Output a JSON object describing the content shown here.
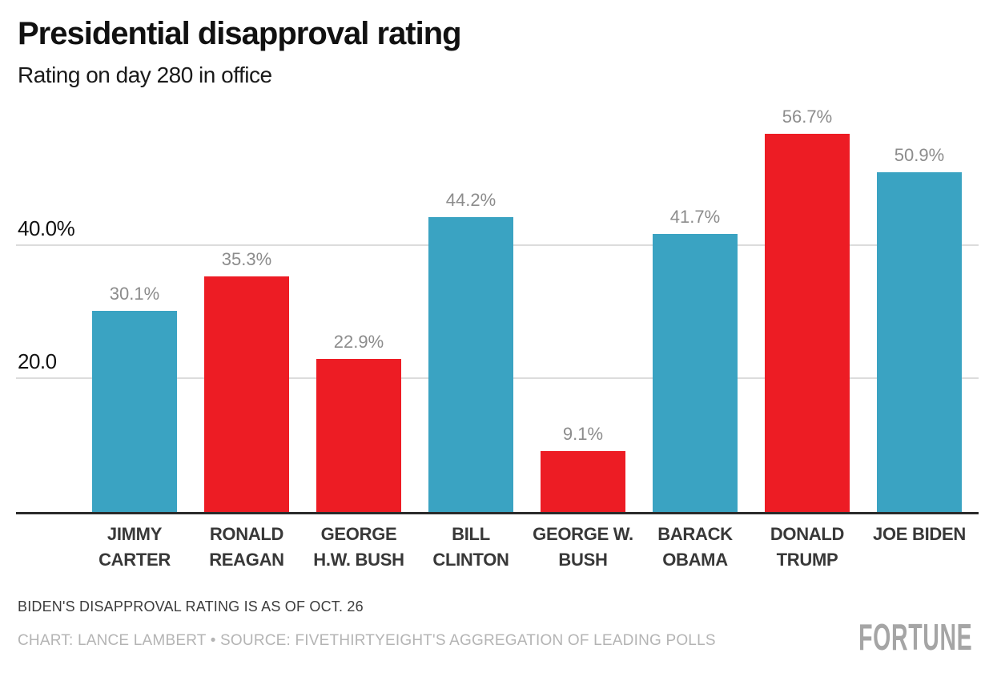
{
  "title": "Presidential disapproval rating",
  "subtitle": "Rating on day 280 in office",
  "chart_data": {
    "type": "bar",
    "title": "Presidential disapproval rating",
    "subtitle": "Rating on day 280 in office",
    "categories": [
      "JIMMY CARTER",
      "RONALD REAGAN",
      "GEORGE H.W. BUSH",
      "BILL CLINTON",
      "GEORGE W. BUSH",
      "BARACK OBAMA",
      "DONALD TRUMP",
      "JOE BIDEN"
    ],
    "category_lines": [
      [
        "JIMMY",
        "CARTER"
      ],
      [
        "RONALD",
        "REAGAN"
      ],
      [
        "GEORGE",
        "H.W. BUSH"
      ],
      [
        "BILL",
        "CLINTON"
      ],
      [
        "GEORGE W.",
        "BUSH"
      ],
      [
        "BARACK",
        "OBAMA"
      ],
      [
        "DONALD",
        "TRUMP"
      ],
      [
        "JOE BIDEN"
      ]
    ],
    "values": [
      30.1,
      35.3,
      22.9,
      44.2,
      9.1,
      41.7,
      56.7,
      50.9
    ],
    "value_labels": [
      "30.1%",
      "35.3%",
      "22.9%",
      "44.2%",
      "9.1%",
      "41.7%",
      "56.7%",
      "50.9%"
    ],
    "bar_colors": [
      "blue",
      "red",
      "red",
      "blue",
      "red",
      "blue",
      "red",
      "blue"
    ],
    "palette": {
      "blue": "#3AA3C2",
      "red": "#ED1C24"
    },
    "xlabel": "",
    "ylabel": "",
    "ylim": [
      0,
      60
    ],
    "yticks": [
      {
        "value": 20,
        "label": "20.0"
      },
      {
        "value": 40,
        "label": "40.0%"
      }
    ],
    "grid": "horizontal gridlines at 20 and 40 only",
    "legend": "none"
  },
  "colors": {
    "bar_blue": "#3AA3C2",
    "bar_red": "#ED1C24",
    "value_label_gray": "#8C8C8C",
    "gridline_gray": "#DCDCDC",
    "axis_baseline": "#2B2B2B",
    "note_gray": "#3C3C3C",
    "credit_gray": "#B4B4B4",
    "brand_gray": "#A5A5A5"
  },
  "footer": {
    "note": "BIDEN'S DISAPPROVAL RATING IS AS OF OCT. 26",
    "credit": "CHART: LANCE LAMBERT • SOURCE: FIVETHIRTYEIGHT'S AGGREGATION OF LEADING POLLS",
    "brand": "FORTUNE"
  }
}
